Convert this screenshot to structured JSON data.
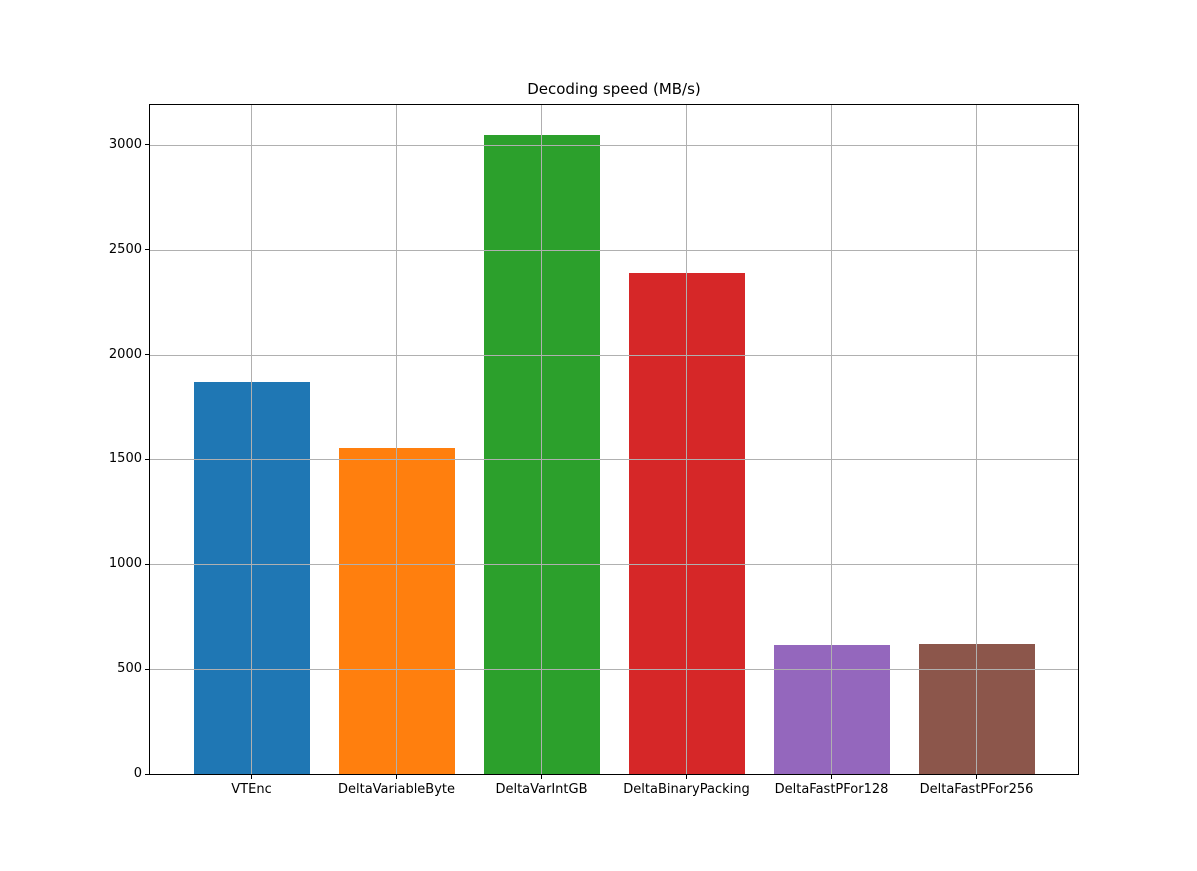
{
  "chart_data": {
    "type": "bar",
    "title": "Decoding speed (MB/s)",
    "categories": [
      "VTEnc",
      "DeltaVariableByte",
      "DeltaVarIntGB",
      "DeltaBinaryPacking",
      "DeltaFastPFor128",
      "DeltaFastPFor256"
    ],
    "values": [
      1870,
      1555,
      3045,
      2390,
      615,
      620
    ],
    "colors": [
      "#1f77b4",
      "#ff7f0e",
      "#2ca02c",
      "#d62728",
      "#9467bd",
      "#8c564b"
    ],
    "xlabel": "",
    "ylabel": "",
    "ylim": [
      0,
      3190
    ],
    "yticks": [
      0,
      500,
      1000,
      1500,
      2000,
      2500,
      3000
    ],
    "xlim": [
      -0.7,
      5.7
    ],
    "bar_width": 0.8,
    "grid": true,
    "legend": "none",
    "grid_color": "#b0b0b0",
    "spine_color": "#000000",
    "background_color": "#ffffff"
  }
}
